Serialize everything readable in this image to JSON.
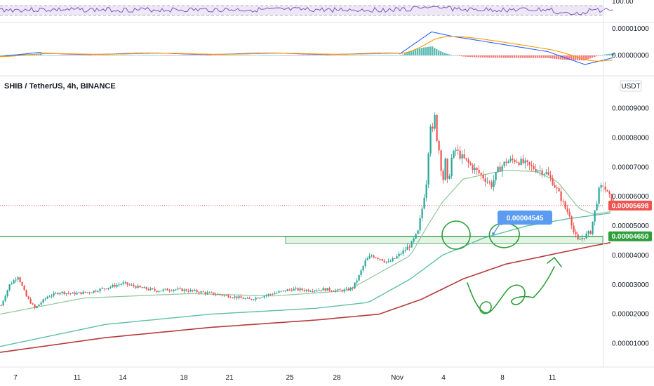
{
  "chart_title": "SHIB / TetherUS, 4h, BINANCE",
  "currency_button": "USDT",
  "rsi_label": "100.00",
  "macd_labels": [
    "0.00001000",
    "0.00000000"
  ],
  "colors": {
    "up": "#26a69a",
    "down": "#ef5350",
    "ema_short": "#8fc79a",
    "ema_mid": "#5fbfa6",
    "ema_long": "#b53a3a",
    "support": "#2e9e3a",
    "last_price": "#ef5350",
    "callout": "#5b9cf0",
    "drawing": "#2e9e3a",
    "rsi": "#7e57c2",
    "macd": "#2962ff",
    "signal": "#ff9800"
  },
  "chart_data": {
    "type": "candlestick",
    "title": "SHIB / TetherUS, 4h, BINANCE",
    "x_tick_labels": [
      "7",
      "11",
      "14",
      "18",
      "21",
      "25",
      "28",
      "Nov",
      "4",
      "8",
      "11"
    ],
    "y_tick_labels": [
      "0.00009000",
      "0.00008000",
      "0.00007000",
      "0.00006000",
      "0.00005000",
      "0.00004000",
      "0.00003000",
      "0.00002000",
      "0.00001000"
    ],
    "ylim": [
      2e-06,
      9.35e-05
    ],
    "last_price": "0.00005698",
    "last_price_value": 5.698e-05,
    "support_level": "0.00004650",
    "support_value": 4.65e-05,
    "support_zone": [
      4.41e-05,
      4.65e-05
    ],
    "callout_value": "0.00004545",
    "callout_num": 4.545e-05,
    "price_path": [
      [
        0,
        2.3e-05
      ],
      [
        4,
        3e-05
      ],
      [
        8,
        3.3e-05
      ],
      [
        12,
        2.6e-05
      ],
      [
        16,
        2.2e-05
      ],
      [
        22,
        2.6e-05
      ],
      [
        28,
        2.75e-05
      ],
      [
        34,
        2.7e-05
      ],
      [
        42,
        2.75e-05
      ],
      [
        50,
        2.9e-05
      ],
      [
        58,
        3.05e-05
      ],
      [
        66,
        2.9e-05
      ],
      [
        74,
        2.8e-05
      ],
      [
        82,
        2.85e-05
      ],
      [
        90,
        2.8e-05
      ],
      [
        100,
        2.7e-05
      ],
      [
        110,
        2.6e-05
      ],
      [
        118,
        2.5e-05
      ],
      [
        126,
        2.65e-05
      ],
      [
        132,
        2.75e-05
      ],
      [
        138,
        2.85e-05
      ],
      [
        146,
        2.82e-05
      ],
      [
        154,
        2.85e-05
      ],
      [
        160,
        2.8e-05
      ],
      [
        164,
        2.82e-05
      ],
      [
        167,
        2.9e-05
      ],
      [
        170,
        3.3e-05
      ],
      [
        173,
        3.8e-05
      ],
      [
        176,
        4e-05
      ],
      [
        180,
        3.9e-05
      ],
      [
        184,
        3.75e-05
      ],
      [
        188,
        3.95e-05
      ],
      [
        192,
        4.2e-05
      ],
      [
        195,
        4.4e-05
      ],
      [
        198,
        4.8e-05
      ],
      [
        200,
        5.6e-05
      ],
      [
        202,
        6.5e-05
      ],
      [
        203,
        7.6e-05
      ],
      [
        204,
        8.5e-05
      ],
      [
        205,
        8.2e-05
      ],
      [
        206,
        8.7e-05
      ],
      [
        207,
        8e-05
      ],
      [
        208,
        7.6e-05
      ],
      [
        209,
        7e-05
      ],
      [
        210,
        6.6e-05
      ],
      [
        211,
        7.2e-05
      ],
      [
        212,
        6.5e-05
      ],
      [
        213,
        6.8e-05
      ],
      [
        214,
        7.3e-05
      ],
      [
        216,
        7.6e-05
      ],
      [
        218,
        7.4e-05
      ],
      [
        221,
        7.2e-05
      ],
      [
        224,
        7e-05
      ],
      [
        227,
        6.8e-05
      ],
      [
        230,
        6.6e-05
      ],
      [
        233,
        6.4e-05
      ],
      [
        236,
        6.9e-05
      ],
      [
        240,
        7.2e-05
      ],
      [
        244,
        7.25e-05
      ],
      [
        248,
        7.15e-05
      ],
      [
        252,
        7e-05
      ],
      [
        256,
        6.9e-05
      ],
      [
        259,
        6.8e-05
      ],
      [
        262,
        6.5e-05
      ],
      [
        265,
        6.1e-05
      ],
      [
        268,
        5.6e-05
      ],
      [
        270,
        5.4e-05
      ],
      [
        272,
        4.8e-05
      ],
      [
        274,
        4.5e-05
      ],
      [
        276,
        4.6e-05
      ],
      [
        278,
        4.7e-05
      ],
      [
        280,
        4.8e-05
      ],
      [
        282,
        5.5e-05
      ],
      [
        284,
        6.2e-05
      ],
      [
        286,
        6.4e-05
      ],
      [
        288,
        6.1e-05
      ],
      [
        290,
        5.9e-05
      ],
      [
        291,
        5.7e-05
      ]
    ],
    "ema_short": [
      [
        0,
        2e-05
      ],
      [
        40,
        2.55e-05
      ],
      [
        90,
        2.7e-05
      ],
      [
        130,
        2.62e-05
      ],
      [
        165,
        2.8e-05
      ],
      [
        180,
        3.4e-05
      ],
      [
        195,
        4e-05
      ],
      [
        203,
        5e-05
      ],
      [
        210,
        5.8e-05
      ],
      [
        220,
        6.6e-05
      ],
      [
        240,
        6.9e-05
      ],
      [
        255,
        6.85e-05
      ],
      [
        265,
        6.5e-05
      ],
      [
        275,
        5.6e-05
      ],
      [
        282,
        5.4e-05
      ],
      [
        291,
        5.5e-05
      ]
    ],
    "ema_mid": [
      [
        0,
        9e-06
      ],
      [
        50,
        1.65e-05
      ],
      [
        100,
        2e-05
      ],
      [
        150,
        2.2e-05
      ],
      [
        175,
        2.4e-05
      ],
      [
        195,
        3.2e-05
      ],
      [
        210,
        4e-05
      ],
      [
        230,
        4.6e-05
      ],
      [
        250,
        5e-05
      ],
      [
        270,
        5.25e-05
      ],
      [
        291,
        5.45e-05
      ]
    ],
    "ema_long": [
      [
        0,
        7e-06
      ],
      [
        50,
        1.2e-05
      ],
      [
        100,
        1.55e-05
      ],
      [
        150,
        1.8e-05
      ],
      [
        180,
        2e-05
      ],
      [
        200,
        2.5e-05
      ],
      [
        220,
        3.2e-05
      ],
      [
        240,
        3.7e-05
      ],
      [
        260,
        4e-05
      ],
      [
        280,
        4.3e-05
      ],
      [
        291,
        4.45e-05
      ]
    ]
  }
}
